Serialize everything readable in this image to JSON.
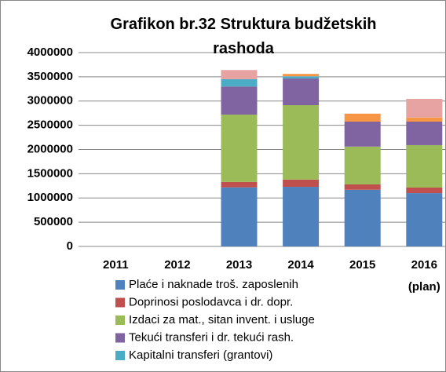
{
  "chart_data": {
    "type": "stacked_bar",
    "title": "Grafikon br.32 Struktura budžetskih rashoda",
    "categories": [
      "2011",
      "2012",
      "2013",
      "2014",
      "2015",
      "2016 (plan)"
    ],
    "series": [
      {
        "name": "Plaće i naknade troš. zaposlenih",
        "color": "#4f81bd",
        "values": [
          null,
          null,
          1220000,
          1230000,
          1170000,
          1100000
        ]
      },
      {
        "name": "Doprinosi poslodavca i dr. dopr.",
        "color": "#c0504d",
        "values": [
          null,
          null,
          110000,
          150000,
          110000,
          115000
        ]
      },
      {
        "name": "Izdaci za mat., sitan invent. i usluge",
        "color": "#9bbb59",
        "values": [
          null,
          null,
          1390000,
          1535000,
          780000,
          875000
        ]
      },
      {
        "name": "Tekući transferi i dr. tekući rash.",
        "color": "#8064a2",
        "values": [
          null,
          null,
          580000,
          550000,
          515000,
          485000
        ]
      },
      {
        "name": "Kapitalni transferi (grantovi)",
        "color": "#4bacc6",
        "values": [
          null,
          null,
          150000,
          45000,
          0,
          0
        ]
      },
      {
        "color": "#f79646",
        "values": [
          null,
          null,
          0,
          50000,
          165000,
          85000
        ]
      },
      {
        "color": "#e6a3a2",
        "values": [
          null,
          null,
          190000,
          0,
          0,
          385000
        ]
      }
    ],
    "ylim": [
      0,
      4000000
    ],
    "yticks": [
      0,
      500000,
      1000000,
      1500000,
      2000000,
      2500000,
      3000000,
      3500000,
      4000000
    ],
    "grid": true
  }
}
